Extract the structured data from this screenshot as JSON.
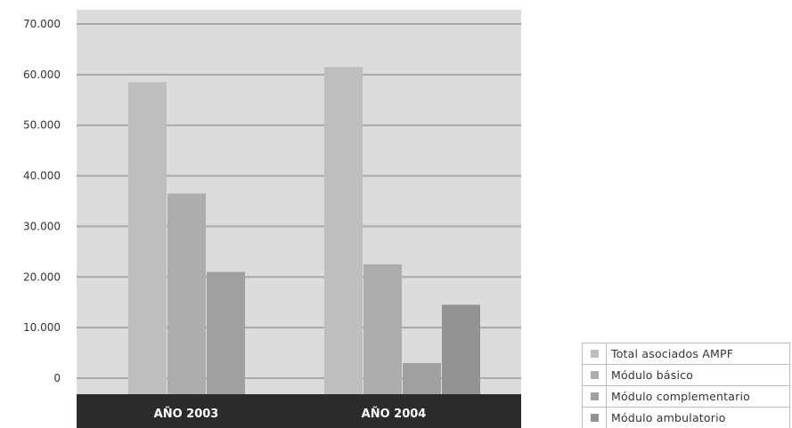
{
  "chart_data": {
    "type": "bar",
    "title": "",
    "xlabel": "",
    "ylabel": "",
    "categories": [
      "AÑO 2003",
      "AÑO 2004"
    ],
    "ylim": [
      0,
      70000
    ],
    "yticks": [
      0,
      10000,
      20000,
      30000,
      40000,
      50000,
      60000,
      70000
    ],
    "ytick_labels": [
      "0",
      "10.000",
      "20.000",
      "30.000",
      "40.000",
      "50.000",
      "60.000",
      "70.000"
    ],
    "grid": true,
    "legend_position": "bottom-right",
    "background_color": "#dcdcdc",
    "category_band_color": "#2b2b2b",
    "series": [
      {
        "name": "Total asociados AMPF",
        "color": "#bebebe",
        "values": [
          58500,
          61500
        ]
      },
      {
        "name": "Módulo básico",
        "color": "#adadad",
        "values": [
          36500,
          22500
        ]
      },
      {
        "name": "Módulo complementario",
        "color": "#a0a0a0",
        "values": [
          21000,
          3000
        ]
      },
      {
        "name": "Módulo ambulatorio",
        "color": "#939393",
        "values": [
          null,
          14500
        ]
      }
    ]
  }
}
